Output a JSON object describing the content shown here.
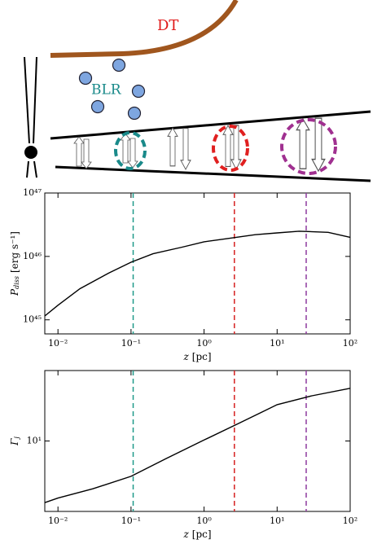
{
  "diagram": {
    "labels": {
      "dt": "DT",
      "blr": "BLR"
    }
  },
  "chart_data": [
    {
      "type": "line",
      "xlog": true,
      "ylog": true,
      "x_label": {
        "symbol": "z",
        "unit": "[pc]"
      },
      "y_label": {
        "symbol": "P",
        "subscript": "diss",
        "unit": "[erg s⁻¹]"
      },
      "xlim": [
        0.0066,
        100
      ],
      "ylim": [
        6e+44,
        1e+47
      ],
      "xticks": [
        {
          "value": 0.01,
          "label": "10⁻²"
        },
        {
          "value": 0.1,
          "label": "10⁻¹"
        },
        {
          "value": 1,
          "label": "10⁰"
        },
        {
          "value": 10,
          "label": "10¹"
        },
        {
          "value": 100,
          "label": "10²"
        }
      ],
      "yticks": [
        {
          "value": 1e+45,
          "label": "10⁴⁵"
        },
        {
          "value": 1e+46,
          "label": "10⁴⁶"
        },
        {
          "value": 1e+47,
          "label": "10⁴⁷"
        }
      ],
      "x": [
        0.0066,
        0.01,
        0.02,
        0.05,
        0.1,
        0.2,
        0.5,
        1,
        2,
        5,
        10,
        20,
        50,
        100
      ],
      "series": [
        {
          "color": "#000000",
          "values": [
            1.15e+45,
            1.7e+45,
            3.1e+45,
            5.5e+45,
            8.1e+45,
            1.1e+46,
            1.4e+46,
            1.7e+46,
            1.9e+46,
            2.2e+46,
            2.35e+46,
            2.5e+46,
            2.4e+46,
            2e+46
          ]
        }
      ],
      "vlines": [
        {
          "x": 0.107,
          "color": "#1f9a8a"
        },
        {
          "x": 2.6,
          "color": "#d62020"
        },
        {
          "x": 25,
          "color": "#8e3a9e"
        }
      ]
    },
    {
      "type": "line",
      "xlog": true,
      "ylog": true,
      "x_label": {
        "symbol": "z",
        "unit": "[pc]"
      },
      "y_label": {
        "symbol": "Γ",
        "subscript": "j"
      },
      "xlim": [
        0.0066,
        100
      ],
      "ylim": [
        5,
        20
      ],
      "xticks": [
        {
          "value": 0.01,
          "label": "10⁻²"
        },
        {
          "value": 0.1,
          "label": "10⁻¹"
        },
        {
          "value": 1,
          "label": "10⁰"
        },
        {
          "value": 10,
          "label": "10¹"
        },
        {
          "value": 100,
          "label": "10²"
        }
      ],
      "yticks": [
        {
          "value": 10,
          "label": "10¹"
        }
      ],
      "x": [
        0.0066,
        0.01,
        0.03,
        0.1,
        0.3,
        1,
        3,
        10,
        30,
        100
      ],
      "series": [
        {
          "color": "#000000",
          "values": [
            5.45,
            5.7,
            6.25,
            7.06,
            8.4,
            10.1,
            11.9,
            14.3,
            15.6,
            16.8
          ]
        }
      ],
      "vlines": [
        {
          "x": 0.107,
          "color": "#1f9a8a"
        },
        {
          "x": 2.6,
          "color": "#d62020"
        },
        {
          "x": 25,
          "color": "#8e3a9e"
        }
      ]
    }
  ]
}
